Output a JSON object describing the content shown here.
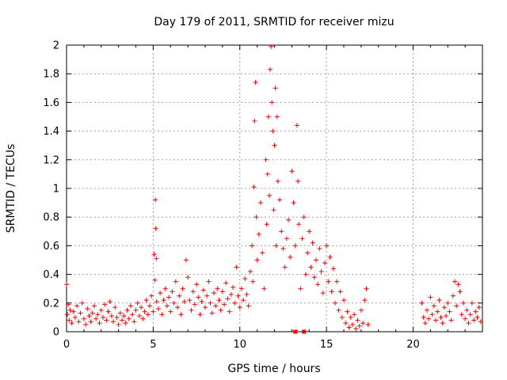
{
  "chart_data": {
    "type": "scatter",
    "title": "Day 179 of 2011, SRMTID for receiver mizu",
    "xlabel": "GPS time / hours",
    "ylabel": "SRMTID / TECUs",
    "xlim": [
      0,
      24
    ],
    "ylim": [
      0,
      2
    ],
    "xticks": [
      0,
      5,
      10,
      15,
      20
    ],
    "xtick_labels": [
      "0",
      "5",
      "10",
      "15",
      "20"
    ],
    "yticks": [
      0,
      0.2,
      0.4,
      0.6,
      0.8,
      1,
      1.2,
      1.4,
      1.6,
      1.8,
      2
    ],
    "ytick_labels": [
      "0",
      "0.2",
      "0.4",
      "0.6",
      "0.8",
      "1",
      "1.2",
      "1.4",
      "1.6",
      "1.8",
      "2"
    ],
    "grid": true,
    "marker": "+",
    "color": "#ff0000",
    "series": [
      {
        "name": "SRMTID",
        "points": [
          [
            0.0,
            0.33
          ],
          [
            0.05,
            0.12
          ],
          [
            0.1,
            0.19
          ],
          [
            0.15,
            0.08
          ],
          [
            0.2,
            0.15
          ],
          [
            0.3,
            0.06
          ],
          [
            0.4,
            0.14
          ],
          [
            0.5,
            0.1
          ],
          [
            0.6,
            0.18
          ],
          [
            0.7,
            0.07
          ],
          [
            0.8,
            0.13
          ],
          [
            0.9,
            0.2
          ],
          [
            1.0,
            0.09
          ],
          [
            1.1,
            0.05
          ],
          [
            1.2,
            0.16
          ],
          [
            1.3,
            0.11
          ],
          [
            1.4,
            0.07
          ],
          [
            1.5,
            0.13
          ],
          [
            1.6,
            0.18
          ],
          [
            1.7,
            0.09
          ],
          [
            1.8,
            0.12
          ],
          [
            1.9,
            0.06
          ],
          [
            2.0,
            0.15
          ],
          [
            2.1,
            0.1
          ],
          [
            2.2,
            0.19
          ],
          [
            2.3,
            0.08
          ],
          [
            2.4,
            0.14
          ],
          [
            2.5,
            0.21
          ],
          [
            2.6,
            0.11
          ],
          [
            2.7,
            0.07
          ],
          [
            2.8,
            0.17
          ],
          [
            2.9,
            0.1
          ],
          [
            3.0,
            0.05
          ],
          [
            3.1,
            0.13
          ],
          [
            3.2,
            0.08
          ],
          [
            3.3,
            0.11
          ],
          [
            3.4,
            0.06
          ],
          [
            3.5,
            0.15
          ],
          [
            3.6,
            0.09
          ],
          [
            3.7,
            0.18
          ],
          [
            3.8,
            0.12
          ],
          [
            3.9,
            0.07
          ],
          [
            4.0,
            0.15
          ],
          [
            4.1,
            0.2
          ],
          [
            4.2,
            0.11
          ],
          [
            4.3,
            0.17
          ],
          [
            4.4,
            0.09
          ],
          [
            4.5,
            0.14
          ],
          [
            4.6,
            0.22
          ],
          [
            4.7,
            0.12
          ],
          [
            4.8,
            0.18
          ],
          [
            4.9,
            0.25
          ],
          [
            5.0,
            0.14
          ],
          [
            5.05,
            0.54
          ],
          [
            5.1,
            0.36
          ],
          [
            5.12,
            0.92
          ],
          [
            5.15,
            0.72
          ],
          [
            5.18,
            0.51
          ],
          [
            5.2,
            0.21
          ],
          [
            5.3,
            0.16
          ],
          [
            5.4,
            0.27
          ],
          [
            5.5,
            0.12
          ],
          [
            5.6,
            0.22
          ],
          [
            5.7,
            0.3
          ],
          [
            5.8,
            0.18
          ],
          [
            5.9,
            0.24
          ],
          [
            6.0,
            0.14
          ],
          [
            6.1,
            0.28
          ],
          [
            6.2,
            0.2
          ],
          [
            6.3,
            0.35
          ],
          [
            6.4,
            0.17
          ],
          [
            6.5,
            0.25
          ],
          [
            6.6,
            0.12
          ],
          [
            6.7,
            0.3
          ],
          [
            6.8,
            0.21
          ],
          [
            6.9,
            0.5
          ],
          [
            7.0,
            0.38
          ],
          [
            7.1,
            0.22
          ],
          [
            7.2,
            0.15
          ],
          [
            7.3,
            0.28
          ],
          [
            7.4,
            0.19
          ],
          [
            7.5,
            0.33
          ],
          [
            7.6,
            0.24
          ],
          [
            7.7,
            0.12
          ],
          [
            7.8,
            0.21
          ],
          [
            7.9,
            0.29
          ],
          [
            8.0,
            0.17
          ],
          [
            8.1,
            0.25
          ],
          [
            8.2,
            0.35
          ],
          [
            8.3,
            0.2
          ],
          [
            8.4,
            0.13
          ],
          [
            8.5,
            0.27
          ],
          [
            8.6,
            0.18
          ],
          [
            8.7,
            0.3
          ],
          [
            8.8,
            0.22
          ],
          [
            8.9,
            0.15
          ],
          [
            9.0,
            0.28
          ],
          [
            9.1,
            0.19
          ],
          [
            9.2,
            0.34
          ],
          [
            9.3,
            0.23
          ],
          [
            9.4,
            0.14
          ],
          [
            9.5,
            0.26
          ],
          [
            9.6,
            0.31
          ],
          [
            9.7,
            0.2
          ],
          [
            9.8,
            0.45
          ],
          [
            9.9,
            0.25
          ],
          [
            10.0,
            0.17
          ],
          [
            10.1,
            0.3
          ],
          [
            10.2,
            0.22
          ],
          [
            10.3,
            0.37
          ],
          [
            10.4,
            0.26
          ],
          [
            10.5,
            0.18
          ],
          [
            10.6,
            0.42
          ],
          [
            10.7,
            0.6
          ],
          [
            10.75,
            0.35
          ],
          [
            10.8,
            1.01
          ],
          [
            10.85,
            1.47
          ],
          [
            10.9,
            1.74
          ],
          [
            10.95,
            0.8
          ],
          [
            11.0,
            0.5
          ],
          [
            11.1,
            0.68
          ],
          [
            11.2,
            0.9
          ],
          [
            11.3,
            0.55
          ],
          [
            11.4,
            0.3
          ],
          [
            11.5,
            1.2
          ],
          [
            11.55,
            0.75
          ],
          [
            11.6,
            1.1
          ],
          [
            11.65,
            1.5
          ],
          [
            11.7,
            0.95
          ],
          [
            11.75,
            1.83
          ],
          [
            11.8,
            1.99
          ],
          [
            11.85,
            1.6
          ],
          [
            11.9,
            1.4
          ],
          [
            11.95,
            0.85
          ],
          [
            12.0,
            1.3
          ],
          [
            12.05,
            1.7
          ],
          [
            12.1,
            0.6
          ],
          [
            12.15,
            1.5
          ],
          [
            12.2,
            1.05
          ],
          [
            12.3,
            0.92
          ],
          [
            12.4,
            0.7
          ],
          [
            12.5,
            0.58
          ],
          [
            12.6,
            0.45
          ],
          [
            12.7,
            0.65
          ],
          [
            12.8,
            0.78
          ],
          [
            12.9,
            0.52
          ],
          [
            13.0,
            1.12
          ],
          [
            13.1,
            0.9
          ],
          [
            13.2,
            0.6
          ],
          [
            13.3,
            1.44
          ],
          [
            13.35,
            1.05
          ],
          [
            13.4,
            0.75
          ],
          [
            13.5,
            0.3
          ],
          [
            13.6,
            0.65
          ],
          [
            13.7,
            0.8
          ],
          [
            13.8,
            0.4
          ],
          [
            13.9,
            0.55
          ],
          [
            14.0,
            0.7
          ],
          [
            14.1,
            0.45
          ],
          [
            14.2,
            0.62
          ],
          [
            14.3,
            0.38
          ],
          [
            14.4,
            0.5
          ],
          [
            14.5,
            0.33
          ],
          [
            14.6,
            0.58
          ],
          [
            14.7,
            0.42
          ],
          [
            14.8,
            0.27
          ],
          [
            14.9,
            0.48
          ],
          [
            15.0,
            0.6
          ],
          [
            15.1,
            0.35
          ],
          [
            15.2,
            0.52
          ],
          [
            15.3,
            0.28
          ],
          [
            15.4,
            0.44
          ],
          [
            15.5,
            0.2
          ],
          [
            15.6,
            0.35
          ],
          [
            15.7,
            0.15
          ],
          [
            15.8,
            0.28
          ],
          [
            15.9,
            0.1
          ],
          [
            16.0,
            0.22
          ],
          [
            16.1,
            0.06
          ],
          [
            16.2,
            0.14
          ],
          [
            16.3,
            0.03
          ],
          [
            16.4,
            0.1
          ],
          [
            16.5,
            0.05
          ],
          [
            16.6,
            0.12
          ],
          [
            16.7,
            0.02
          ],
          [
            16.8,
            0.08
          ],
          [
            16.9,
            0.04
          ],
          [
            17.0,
            0.15
          ],
          [
            17.1,
            0.06
          ],
          [
            17.2,
            0.22
          ],
          [
            17.3,
            0.3
          ],
          [
            17.4,
            0.05
          ],
          [
            20.5,
            0.2
          ],
          [
            20.6,
            0.1
          ],
          [
            20.7,
            0.06
          ],
          [
            20.8,
            0.15
          ],
          [
            20.9,
            0.09
          ],
          [
            21.0,
            0.24
          ],
          [
            21.1,
            0.12
          ],
          [
            21.2,
            0.18
          ],
          [
            21.3,
            0.08
          ],
          [
            21.4,
            0.14
          ],
          [
            21.5,
            0.22
          ],
          [
            21.6,
            0.1
          ],
          [
            21.7,
            0.06
          ],
          [
            21.8,
            0.17
          ],
          [
            21.9,
            0.11
          ],
          [
            22.0,
            0.2
          ],
          [
            22.1,
            0.14
          ],
          [
            22.2,
            0.08
          ],
          [
            22.3,
            0.25
          ],
          [
            22.4,
            0.35
          ],
          [
            22.5,
            0.18
          ],
          [
            22.6,
            0.33
          ],
          [
            22.7,
            0.28
          ],
          [
            22.8,
            0.12
          ],
          [
            22.9,
            0.2
          ],
          [
            23.0,
            0.09
          ],
          [
            23.1,
            0.15
          ],
          [
            23.2,
            0.06
          ],
          [
            23.3,
            0.12
          ],
          [
            23.4,
            0.2
          ],
          [
            23.5,
            0.08
          ],
          [
            23.6,
            0.14
          ],
          [
            23.7,
            0.1
          ],
          [
            23.8,
            0.17
          ],
          [
            23.9,
            0.07
          ]
        ],
        "zero_markers": [
          [
            13.2,
            0.0
          ],
          [
            13.7,
            0.0
          ]
        ]
      }
    ]
  }
}
